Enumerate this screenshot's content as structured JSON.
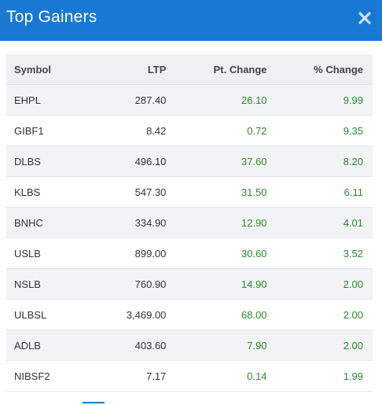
{
  "header": {
    "title": "Top Gainers",
    "close_icon": "close-icon",
    "bg_color": "#1779d2"
  },
  "table": {
    "columns": [
      "Symbol",
      "LTP",
      "Pt. Change",
      "% Change"
    ],
    "rows": [
      [
        "EHPL",
        "287.40",
        "26.10",
        "9.99"
      ],
      [
        "GIBF1",
        "8.42",
        "0.72",
        "9.35"
      ],
      [
        "DLBS",
        "496.10",
        "37.60",
        "8.20"
      ],
      [
        "KLBS",
        "547.30",
        "31.50",
        "6.11"
      ],
      [
        "BNHC",
        "334.90",
        "12.90",
        "4.01"
      ],
      [
        "USLB",
        "899.00",
        "30.60",
        "3.52"
      ],
      [
        "NSLB",
        "760.90",
        "14.90",
        "2.00"
      ],
      [
        "ULBSL",
        "3,469.00",
        "68.00",
        "2.00"
      ],
      [
        "ADLB",
        "403.60",
        "7.90",
        "2.00"
      ],
      [
        "NIBSF2",
        "7.17",
        "0.14",
        "1.99"
      ]
    ],
    "positive_color": "#2a8a2a"
  }
}
